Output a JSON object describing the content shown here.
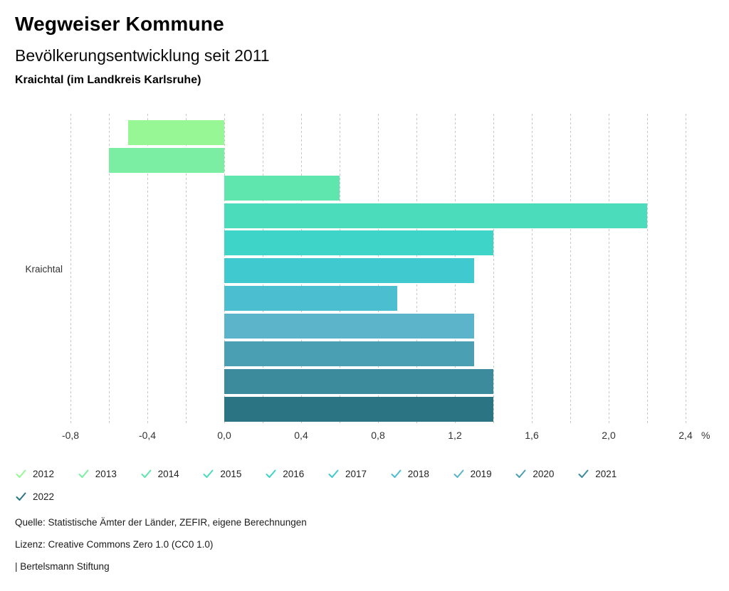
{
  "header": {
    "title": "Wegweiser Kommune",
    "subtitle": "Bevölkerungsentwicklung seit 2011",
    "region": "Kraichtal (im Landkreis Karlsruhe)"
  },
  "chart_data": {
    "type": "bar",
    "orientation": "horizontal",
    "title": "Bevölkerungsentwicklung seit 2011",
    "category_label": "Kraichtal",
    "unit": "%",
    "xlim": [
      -0.8,
      2.4
    ],
    "grid_step": 0.2,
    "grid_dashed": true,
    "x_ticks": [
      {
        "value": -0.8,
        "label": "-0,8"
      },
      {
        "value": -0.4,
        "label": "-0,4"
      },
      {
        "value": 0.0,
        "label": "0,0"
      },
      {
        "value": 0.4,
        "label": "0,4"
      },
      {
        "value": 0.8,
        "label": "0,8"
      },
      {
        "value": 1.2,
        "label": "1,2"
      },
      {
        "value": 1.6,
        "label": "1,6"
      },
      {
        "value": 2.0,
        "label": "2,0"
      },
      {
        "value": 2.4,
        "label": "2,4"
      }
    ],
    "series": [
      {
        "year": "2012",
        "value": -0.5,
        "color": "#98F795"
      },
      {
        "year": "2013",
        "value": -0.6,
        "color": "#7CEEA4"
      },
      {
        "year": "2014",
        "value": 0.6,
        "color": "#5FE5AE"
      },
      {
        "year": "2015",
        "value": 2.2,
        "color": "#4BDCBB"
      },
      {
        "year": "2016",
        "value": 1.4,
        "color": "#3ED5C8"
      },
      {
        "year": "2017",
        "value": 1.3,
        "color": "#41C9D0"
      },
      {
        "year": "2018",
        "value": 0.9,
        "color": "#4BBED0"
      },
      {
        "year": "2019",
        "value": 1.3,
        "color": "#5BB4C9"
      },
      {
        "year": "2020",
        "value": 1.3,
        "color": "#4AA0B2"
      },
      {
        "year": "2021",
        "value": 1.4,
        "color": "#3C8B9D"
      },
      {
        "year": "2022",
        "value": 1.4,
        "color": "#2B7484"
      }
    ],
    "legend_position": "bottom",
    "legend_marker": "check-icon"
  },
  "footer": {
    "source": "Quelle: Statistische Ämter der Länder, ZEFIR, eigene Berechnungen",
    "license": "Lizenz: Creative Commons Zero 1.0 (CC0 1.0)",
    "attribution": "| Bertelsmann Stiftung"
  }
}
